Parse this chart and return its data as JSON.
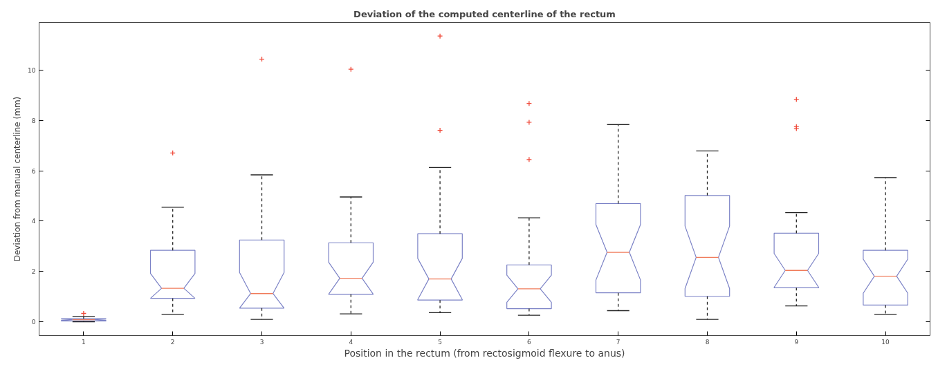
{
  "chart_data": {
    "type": "box",
    "title": "Deviation of the computed centerline of the rectum",
    "xlabel": "Position in the rectum (from rectosigmoid flexure to anus)",
    "ylabel": "Deviation from manual centerline (mm)",
    "categories": [
      "1",
      "2",
      "3",
      "4",
      "5",
      "6",
      "7",
      "8",
      "9",
      "10"
    ],
    "color": "#7b82c6",
    "boxes": [
      {
        "low": 0.0,
        "q1": 0.03,
        "median": 0.08,
        "q3": 0.12,
        "high": 0.21,
        "outliers": [
          0.33
        ]
      },
      {
        "low": 0.29,
        "q1": 0.93,
        "median": 1.33,
        "q3": 2.84,
        "high": 4.55,
        "outliers": [
          6.71
        ]
      },
      {
        "low": 0.09,
        "q1": 0.54,
        "median": 1.12,
        "q3": 3.25,
        "high": 5.84,
        "outliers": [
          10.44
        ]
      },
      {
        "low": 0.31,
        "q1": 1.09,
        "median": 1.73,
        "q3": 3.14,
        "high": 4.96,
        "outliers": [
          10.04
        ]
      },
      {
        "low": 0.36,
        "q1": 0.86,
        "median": 1.7,
        "q3": 3.5,
        "high": 6.13,
        "outliers": [
          11.36,
          7.61
        ]
      },
      {
        "low": 0.26,
        "q1": 0.52,
        "median": 1.31,
        "q3": 2.26,
        "high": 4.13,
        "outliers": [
          8.68,
          7.93,
          6.45
        ]
      },
      {
        "low": 0.44,
        "q1": 1.15,
        "median": 2.76,
        "q3": 4.7,
        "high": 7.84
      },
      {
        "low": 0.09,
        "q1": 1.01,
        "median": 2.56,
        "q3": 5.02,
        "high": 6.79
      },
      {
        "low": 0.63,
        "q1": 1.35,
        "median": 2.04,
        "q3": 3.52,
        "high": 4.34,
        "outliers": [
          8.84,
          7.76,
          7.68
        ]
      },
      {
        "low": 0.29,
        "q1": 0.66,
        "median": 1.81,
        "q3": 2.84,
        "high": 5.73
      }
    ],
    "ylim": [
      -0.55,
      11.9
    ],
    "yticks": [
      0,
      2,
      4,
      6,
      8,
      10
    ],
    "marker": "cross",
    "grid": false
  }
}
